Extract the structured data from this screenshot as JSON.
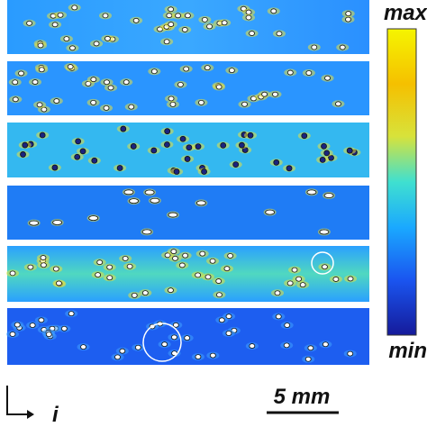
{
  "colorbar": {
    "max_label": "max",
    "min_label": "min"
  },
  "axis": {
    "label": "i"
  },
  "scale_bar": {
    "label": "5 mm"
  }
}
